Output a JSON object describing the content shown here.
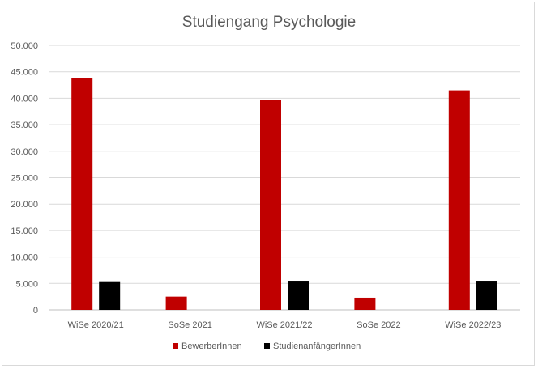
{
  "chart_data": {
    "type": "bar",
    "title": "Studiengang Psychologie",
    "categories": [
      "WiSe 2020/21",
      "SoSe 2021",
      "WiSe 2021/22",
      "SoSe 2022",
      "WiSe 2022/23"
    ],
    "series": [
      {
        "name": "BewerberInnen",
        "color": "#c00000",
        "values": [
          43800,
          2500,
          39700,
          2300,
          41500
        ]
      },
      {
        "name": "StudienanfängerInnen",
        "color": "#000000",
        "values": [
          5400,
          0,
          5500,
          0,
          5500
        ]
      }
    ],
    "ylim": [
      0,
      50000
    ],
    "yticks": [
      "0",
      "5.000",
      "10.000",
      "15.000",
      "20.000",
      "25.000",
      "30.000",
      "35.000",
      "40.000",
      "45.000",
      "50.000"
    ],
    "grid": true,
    "legend": "bottom"
  }
}
